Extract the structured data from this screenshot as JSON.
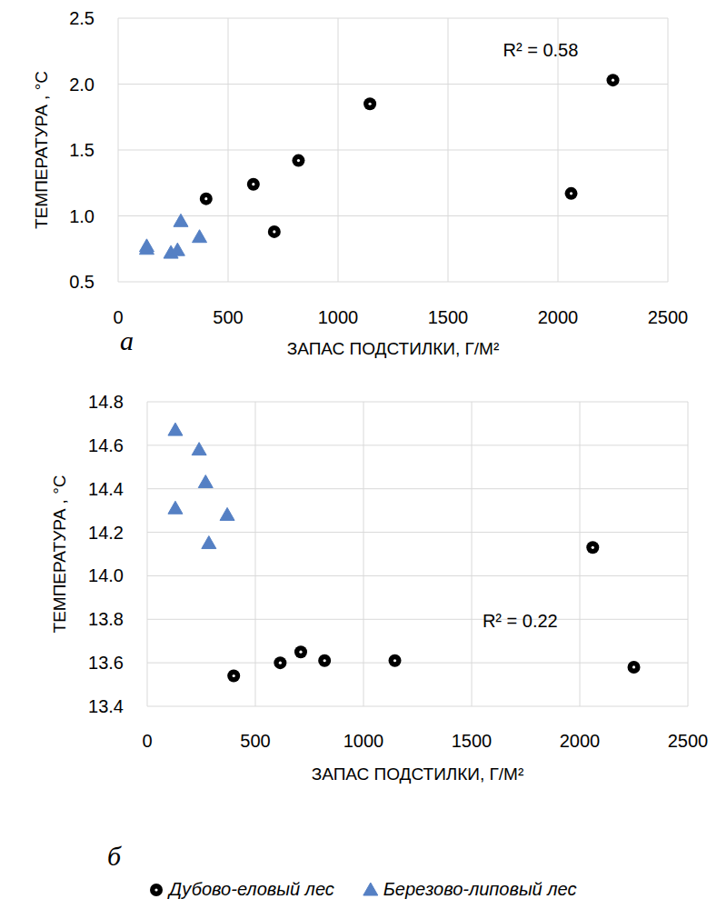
{
  "chart_data": [
    {
      "type": "scatter",
      "subtitle": "а",
      "x_label": "ЗАПАС ПОДСТИЛКИ, Г/М²",
      "y_label": "ТЕМПЕРАТУРА , °C",
      "annotations": [
        {
          "text": "R² = 0.58"
        }
      ],
      "xlim": [
        0,
        2500
      ],
      "xticks": [
        0,
        500,
        1000,
        1500,
        2000,
        2500
      ],
      "ylim": [
        0.5,
        2.5
      ],
      "yticks": [
        0.5,
        {
          "value": 1,
          "label": "1.0"
        },
        1.5,
        {
          "value": 2,
          "label": "2.0"
        },
        2.5
      ],
      "grid": true,
      "series": [
        {
          "color": "#000000",
          "marker": "circle",
          "x": [
            400,
            615,
            710,
            820,
            1145,
            2060,
            2250
          ],
          "values": [
            1.13,
            1.24,
            0.88,
            1.42,
            1.85,
            1.17,
            2.03
          ]
        },
        {
          "color": "#5580c4",
          "marker": "triangle",
          "x": [
            130,
            240,
            270,
            130,
            370,
            285
          ],
          "values": [
            0.77,
            0.72,
            0.74,
            0.75,
            0.84,
            0.96
          ]
        }
      ]
    },
    {
      "type": "scatter",
      "subtitle": "б",
      "x_label": "ЗАПАС ПОДСТИЛКИ, Г/М²",
      "y_label": "ТЕМПЕРАТУРА , °C",
      "annotations": [
        {
          "text": "R² = 0.22"
        }
      ],
      "xlim": [
        0,
        2500
      ],
      "xticks": [
        0,
        500,
        1000,
        1500,
        2000,
        2500
      ],
      "ylim": [
        13.4,
        14.8
      ],
      "yticks": [
        13.4,
        13.6,
        13.8,
        {
          "value": 14,
          "label": "14.0"
        },
        14.2,
        14.4,
        14.6,
        14.8
      ],
      "grid": true,
      "legend": "bottom",
      "series": [
        {
          "name": "Дубово-еловый лес",
          "color": "#000000",
          "marker": "circle",
          "x": [
            400,
            615,
            710,
            820,
            1145,
            2060,
            2250
          ],
          "values": [
            13.54,
            13.6,
            13.65,
            13.61,
            13.61,
            14.13,
            13.58
          ]
        },
        {
          "name": "Березово-липовый лес",
          "color": "#5580c4",
          "marker": "triangle",
          "x": [
            130,
            240,
            270,
            130,
            370,
            285
          ],
          "values": [
            14.67,
            14.58,
            14.43,
            14.31,
            14.28,
            14.15
          ]
        }
      ]
    }
  ]
}
